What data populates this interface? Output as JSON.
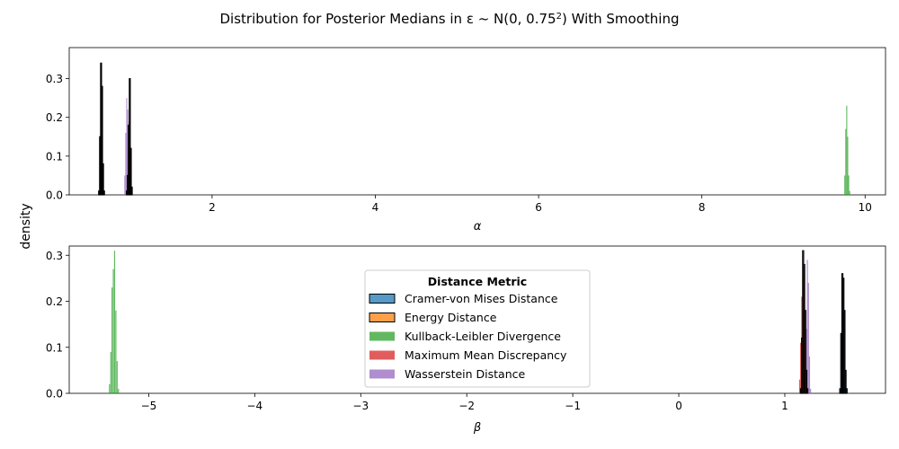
{
  "figure": {
    "title": "Distribution for Posterior Medians in ε ~ N(0, 0.75²) With Smoothing",
    "shared_ylabel": "density"
  },
  "legend": {
    "title": "Distance Metric",
    "placement": "center (lower panel)"
  },
  "colors": {
    "Cramer-von Mises Distance": "#1f77b4",
    "Energy Distance": "#ff7f0e",
    "Kullback-Leibler Divergence": "#2ca02c",
    "Maximum Mean Discrepancy": "#d62728",
    "Wasserstein Distance": "#9467bd"
  },
  "chart_data": [
    {
      "type": "histogram",
      "xlabel": "α",
      "ylabel": "",
      "xlim": [
        0.25,
        10.25
      ],
      "ylim": [
        0,
        0.38
      ],
      "xticks": [
        2,
        4,
        6,
        8,
        10
      ],
      "yticks": [
        0.0,
        0.1,
        0.2,
        0.3
      ],
      "series": [
        {
          "name": "Cramer-von Mises Distance",
          "outlined": true,
          "bins": [
            [
              0.61,
              0.01
            ],
            [
              0.622,
              0.15
            ],
            [
              0.634,
              0.34
            ],
            [
              0.646,
              0.28
            ],
            [
              0.658,
              0.08
            ],
            [
              0.67,
              0.01
            ]
          ]
        },
        {
          "name": "Energy Distance",
          "outlined": true,
          "bins": [
            [
              0.95,
              0.01
            ],
            [
              0.962,
              0.05
            ],
            [
              0.974,
              0.18
            ],
            [
              0.986,
              0.3
            ],
            [
              0.998,
              0.12
            ],
            [
              1.01,
              0.02
            ]
          ]
        },
        {
          "name": "Kullback-Leibler Divergence",
          "outlined": false,
          "bins": [
            [
              9.745,
              0.05
            ],
            [
              9.757,
              0.17
            ],
            [
              9.769,
              0.23
            ],
            [
              9.781,
              0.15
            ],
            [
              9.793,
              0.05
            ],
            [
              9.805,
              0.01
            ]
          ]
        },
        {
          "name": "Maximum Mean Discrepancy",
          "outlined": false,
          "bins": [
            [
              0.955,
              0.03
            ],
            [
              0.967,
              0.12
            ],
            [
              0.979,
              0.19
            ],
            [
              0.991,
              0.15
            ],
            [
              1.003,
              0.06
            ]
          ]
        },
        {
          "name": "Wasserstein Distance",
          "outlined": false,
          "bins": [
            [
              0.925,
              0.05
            ],
            [
              0.937,
              0.16
            ],
            [
              0.949,
              0.25
            ],
            [
              0.961,
              0.22
            ],
            [
              0.973,
              0.08
            ]
          ]
        }
      ]
    },
    {
      "type": "histogram",
      "xlabel": "β",
      "ylabel": "",
      "xlim": [
        -5.75,
        1.95
      ],
      "ylim": [
        0,
        0.32
      ],
      "xticks": [
        -5,
        -4,
        -3,
        -2,
        -1,
        0,
        1
      ],
      "yticks": [
        0.0,
        0.1,
        0.2,
        0.3
      ],
      "series": [
        {
          "name": "Cramer-von Mises Distance",
          "outlined": true,
          "bins": [
            [
              1.518,
              0.01
            ],
            [
              1.528,
              0.13
            ],
            [
              1.538,
              0.26
            ],
            [
              1.548,
              0.25
            ],
            [
              1.558,
              0.18
            ],
            [
              1.568,
              0.05
            ],
            [
              1.578,
              0.01
            ]
          ]
        },
        {
          "name": "Energy Distance",
          "outlined": true,
          "bins": [
            [
              1.148,
              0.01
            ],
            [
              1.158,
              0.12
            ],
            [
              1.168,
              0.31
            ],
            [
              1.178,
              0.28
            ],
            [
              1.188,
              0.18
            ],
            [
              1.198,
              0.05
            ],
            [
              1.208,
              0.01
            ]
          ]
        },
        {
          "name": "Kullback-Leibler Divergence",
          "outlined": false,
          "bins": [
            [
              -5.375,
              0.02
            ],
            [
              -5.363,
              0.09
            ],
            [
              -5.351,
              0.23
            ],
            [
              -5.339,
              0.27
            ],
            [
              -5.327,
              0.31
            ],
            [
              -5.315,
              0.18
            ],
            [
              -5.303,
              0.07
            ],
            [
              -5.291,
              0.01
            ]
          ]
        },
        {
          "name": "Maximum Mean Discrepancy",
          "outlined": false,
          "bins": [
            [
              1.135,
              0.03
            ],
            [
              1.145,
              0.11
            ],
            [
              1.155,
              0.21
            ],
            [
              1.165,
              0.25
            ],
            [
              1.175,
              0.18
            ],
            [
              1.185,
              0.07
            ],
            [
              1.195,
              0.01
            ]
          ]
        },
        {
          "name": "Wasserstein Distance",
          "outlined": false,
          "bins": [
            [
              1.188,
              0.03
            ],
            [
              1.198,
              0.14
            ],
            [
              1.208,
              0.29
            ],
            [
              1.218,
              0.24
            ],
            [
              1.228,
              0.08
            ],
            [
              1.238,
              0.01
            ]
          ]
        }
      ]
    }
  ]
}
